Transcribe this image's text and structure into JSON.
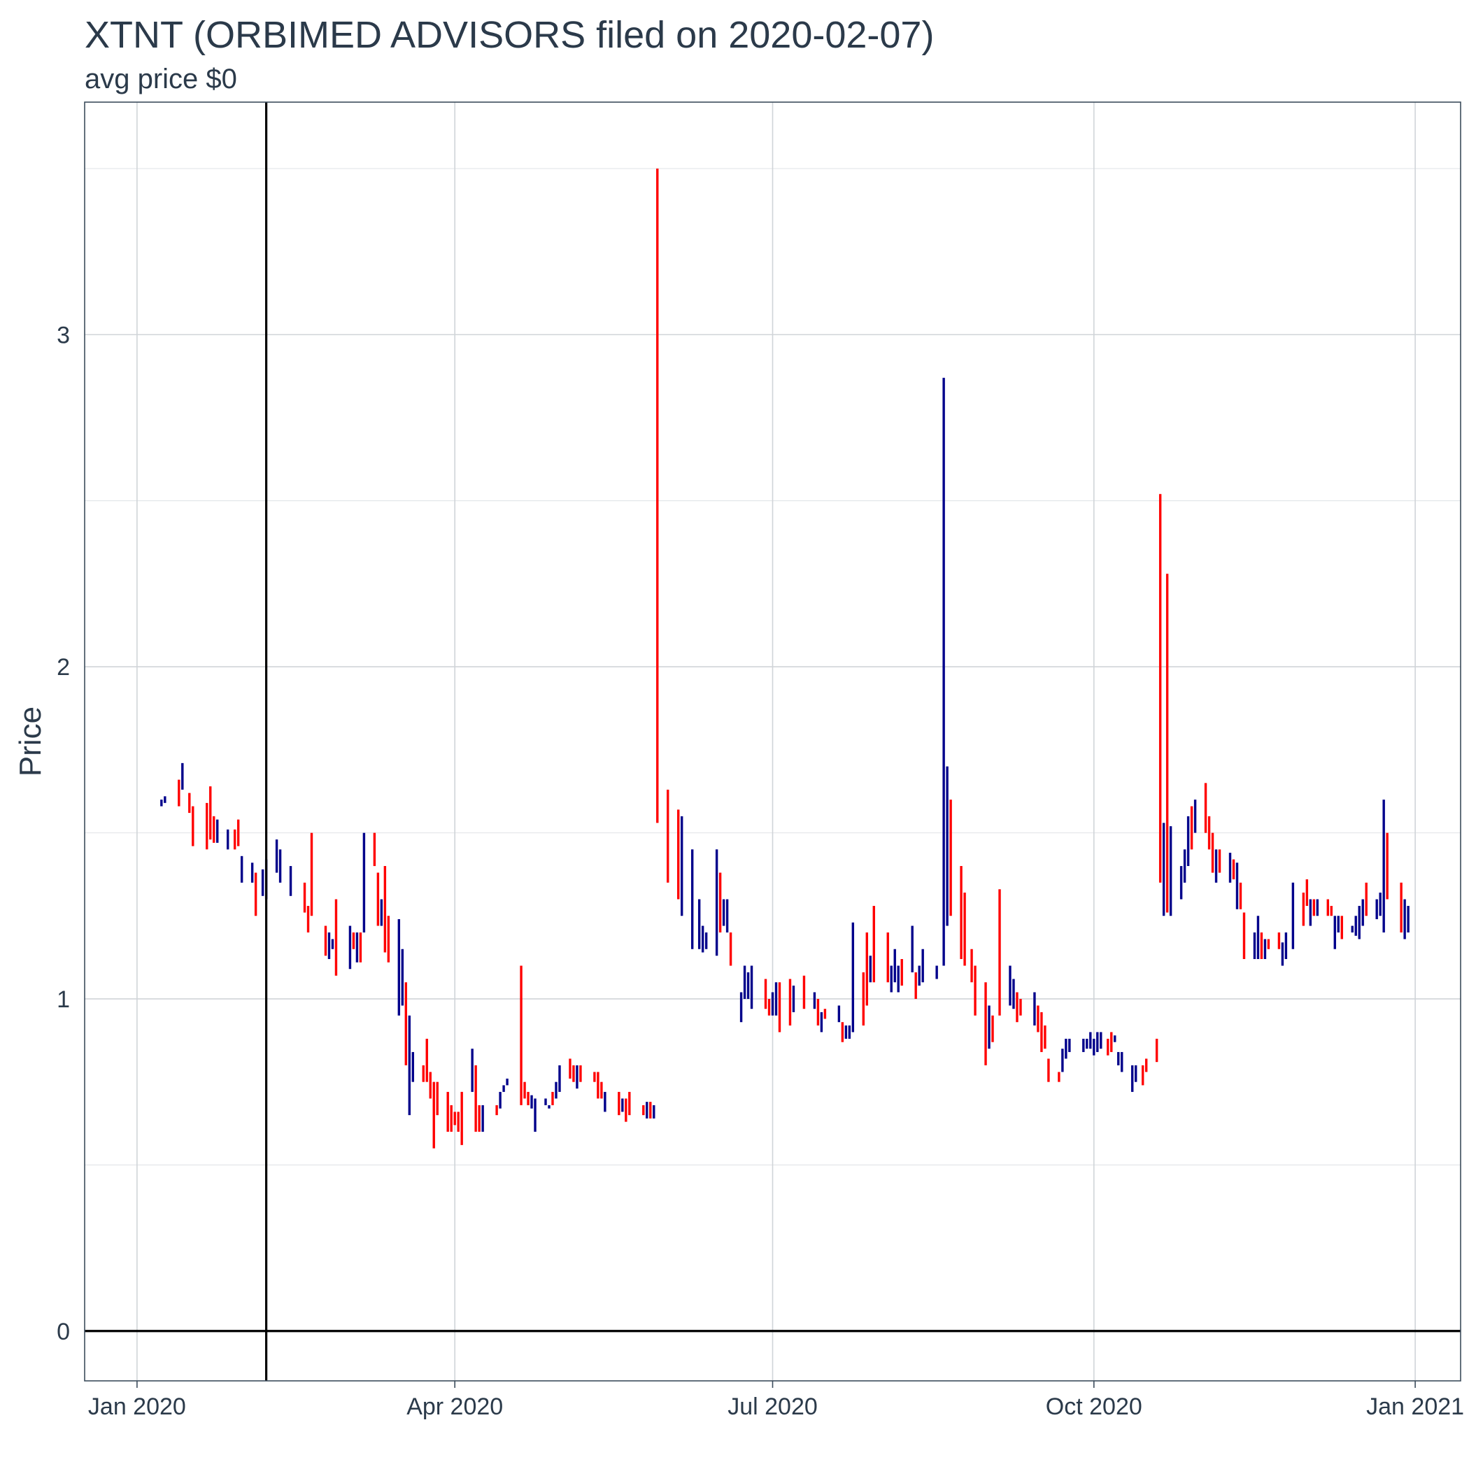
{
  "chart_data": {
    "type": "ohlc-bar",
    "title": "XTNT (ORBIMED ADVISORS filed on 2020-02-07)",
    "subtitle": "avg price $0",
    "xlabel": "",
    "ylabel": "Price",
    "xlim": [
      "2019-12-17",
      "2021-01-14"
    ],
    "ylim": [
      -0.15,
      3.7
    ],
    "x_ticks": [
      {
        "date": "2020-01-01",
        "label": "Jan 2020"
      },
      {
        "date": "2020-04-01",
        "label": "Apr 2020"
      },
      {
        "date": "2020-07-01",
        "label": "Jul 2020"
      },
      {
        "date": "2020-10-01",
        "label": "Oct 2020"
      },
      {
        "date": "2021-01-01",
        "label": "Jan 2021"
      }
    ],
    "y_ticks": [
      0,
      1,
      2,
      3
    ],
    "reference_lines": {
      "vertical_date": "2020-02-07",
      "horizontal_value": 0
    },
    "up_color": "#00008b",
    "down_color": "#ff0000",
    "bars": [
      [
        "2020-01-08",
        1.58,
        1.6,
        "up"
      ],
      [
        "2020-01-09",
        1.59,
        1.61,
        "up"
      ],
      [
        "2020-01-13",
        1.58,
        1.66,
        "down"
      ],
      [
        "2020-01-14",
        1.63,
        1.71,
        "up"
      ],
      [
        "2020-01-16",
        1.56,
        1.62,
        "down"
      ],
      [
        "2020-01-17",
        1.46,
        1.58,
        "down"
      ],
      [
        "2020-01-21",
        1.45,
        1.59,
        "down"
      ],
      [
        "2020-01-22",
        1.48,
        1.64,
        "down"
      ],
      [
        "2020-01-23",
        1.47,
        1.55,
        "down"
      ],
      [
        "2020-01-24",
        1.47,
        1.54,
        "up"
      ],
      [
        "2020-01-27",
        1.45,
        1.51,
        "up"
      ],
      [
        "2020-01-29",
        1.45,
        1.51,
        "down"
      ],
      [
        "2020-01-30",
        1.46,
        1.54,
        "down"
      ],
      [
        "2020-01-31",
        1.35,
        1.43,
        "up"
      ],
      [
        "2020-02-03",
        1.35,
        1.41,
        "up"
      ],
      [
        "2020-02-04",
        1.25,
        1.38,
        "down"
      ],
      [
        "2020-02-06",
        1.31,
        1.39,
        "up"
      ],
      [
        "2020-02-07",
        1.3,
        1.42,
        "up"
      ],
      [
        "2020-02-10",
        1.38,
        1.48,
        "up"
      ],
      [
        "2020-02-11",
        1.35,
        1.45,
        "up"
      ],
      [
        "2020-02-14",
        1.31,
        1.4,
        "up"
      ],
      [
        "2020-02-18",
        1.26,
        1.35,
        "down"
      ],
      [
        "2020-02-19",
        1.2,
        1.28,
        "down"
      ],
      [
        "2020-02-20",
        1.25,
        1.5,
        "down"
      ],
      [
        "2020-02-24",
        1.13,
        1.22,
        "down"
      ],
      [
        "2020-02-25",
        1.12,
        1.2,
        "up"
      ],
      [
        "2020-02-26",
        1.15,
        1.18,
        "up"
      ],
      [
        "2020-02-27",
        1.07,
        1.3,
        "down"
      ],
      [
        "2020-03-02",
        1.09,
        1.22,
        "up"
      ],
      [
        "2020-03-03",
        1.15,
        1.2,
        "down"
      ],
      [
        "2020-03-04",
        1.11,
        1.2,
        "up"
      ],
      [
        "2020-03-05",
        1.11,
        1.2,
        "down"
      ],
      [
        "2020-03-06",
        1.2,
        1.5,
        "up"
      ],
      [
        "2020-03-09",
        1.4,
        1.5,
        "down"
      ],
      [
        "2020-03-10",
        1.22,
        1.38,
        "down"
      ],
      [
        "2020-03-11",
        1.22,
        1.3,
        "up"
      ],
      [
        "2020-03-12",
        1.14,
        1.4,
        "down"
      ],
      [
        "2020-03-13",
        1.11,
        1.25,
        "down"
      ],
      [
        "2020-03-16",
        0.95,
        1.24,
        "up"
      ],
      [
        "2020-03-17",
        0.98,
        1.15,
        "up"
      ],
      [
        "2020-03-18",
        0.8,
        1.05,
        "down"
      ],
      [
        "2020-03-19",
        0.65,
        0.95,
        "up"
      ],
      [
        "2020-03-20",
        0.75,
        0.84,
        "up"
      ],
      [
        "2020-03-23",
        0.75,
        0.8,
        "down"
      ],
      [
        "2020-03-24",
        0.75,
        0.88,
        "down"
      ],
      [
        "2020-03-25",
        0.7,
        0.78,
        "down"
      ],
      [
        "2020-03-26",
        0.55,
        0.75,
        "down"
      ],
      [
        "2020-03-27",
        0.65,
        0.75,
        "down"
      ],
      [
        "2020-03-30",
        0.6,
        0.72,
        "down"
      ],
      [
        "2020-03-31",
        0.6,
        0.68,
        "down"
      ],
      [
        "2020-04-01",
        0.62,
        0.66,
        "down"
      ],
      [
        "2020-04-02",
        0.6,
        0.66,
        "down"
      ],
      [
        "2020-04-03",
        0.56,
        0.72,
        "down"
      ],
      [
        "2020-04-06",
        0.72,
        0.85,
        "up"
      ],
      [
        "2020-04-07",
        0.6,
        0.8,
        "down"
      ],
      [
        "2020-04-08",
        0.6,
        0.68,
        "down"
      ],
      [
        "2020-04-09",
        0.6,
        0.68,
        "up"
      ],
      [
        "2020-04-13",
        0.65,
        0.68,
        "down"
      ],
      [
        "2020-04-14",
        0.67,
        0.72,
        "up"
      ],
      [
        "2020-04-15",
        0.72,
        0.74,
        "up"
      ],
      [
        "2020-04-16",
        0.74,
        0.76,
        "up"
      ],
      [
        "2020-04-20",
        0.68,
        1.1,
        "down"
      ],
      [
        "2020-04-21",
        0.7,
        0.75,
        "down"
      ],
      [
        "2020-04-22",
        0.68,
        0.72,
        "down"
      ],
      [
        "2020-04-23",
        0.67,
        0.71,
        "up"
      ],
      [
        "2020-04-24",
        0.6,
        0.7,
        "up"
      ],
      [
        "2020-04-27",
        0.68,
        0.7,
        "up"
      ],
      [
        "2020-04-28",
        0.67,
        0.68,
        "up"
      ],
      [
        "2020-04-29",
        0.68,
        0.72,
        "down"
      ],
      [
        "2020-04-30",
        0.7,
        0.75,
        "up"
      ],
      [
        "2020-05-01",
        0.72,
        0.8,
        "up"
      ],
      [
        "2020-05-04",
        0.76,
        0.82,
        "down"
      ],
      [
        "2020-05-05",
        0.75,
        0.8,
        "down"
      ],
      [
        "2020-05-06",
        0.73,
        0.8,
        "up"
      ],
      [
        "2020-05-07",
        0.75,
        0.8,
        "down"
      ],
      [
        "2020-05-11",
        0.75,
        0.78,
        "down"
      ],
      [
        "2020-05-12",
        0.7,
        0.78,
        "down"
      ],
      [
        "2020-05-13",
        0.7,
        0.75,
        "down"
      ],
      [
        "2020-05-14",
        0.66,
        0.72,
        "up"
      ],
      [
        "2020-05-18",
        0.65,
        0.72,
        "down"
      ],
      [
        "2020-05-19",
        0.66,
        0.7,
        "up"
      ],
      [
        "2020-05-20",
        0.63,
        0.7,
        "down"
      ],
      [
        "2020-05-21",
        0.65,
        0.72,
        "down"
      ],
      [
        "2020-05-25",
        0.65,
        0.68,
        "down"
      ],
      [
        "2020-05-26",
        0.64,
        0.69,
        "up"
      ],
      [
        "2020-05-27",
        0.64,
        0.69,
        "down"
      ],
      [
        "2020-05-28",
        0.64,
        0.68,
        "up"
      ],
      [
        "2020-05-29",
        1.53,
        3.5,
        "down"
      ],
      [
        "2020-06-01",
        1.35,
        1.63,
        "down"
      ],
      [
        "2020-06-04",
        1.3,
        1.57,
        "down"
      ],
      [
        "2020-06-05",
        1.25,
        1.55,
        "up"
      ],
      [
        "2020-06-08",
        1.15,
        1.45,
        "up"
      ],
      [
        "2020-06-10",
        1.15,
        1.3,
        "up"
      ],
      [
        "2020-06-11",
        1.14,
        1.22,
        "up"
      ],
      [
        "2020-06-12",
        1.15,
        1.2,
        "up"
      ],
      [
        "2020-06-15",
        1.13,
        1.45,
        "up"
      ],
      [
        "2020-06-16",
        1.2,
        1.38,
        "down"
      ],
      [
        "2020-06-17",
        1.22,
        1.3,
        "up"
      ],
      [
        "2020-06-18",
        1.2,
        1.3,
        "up"
      ],
      [
        "2020-06-19",
        1.1,
        1.2,
        "down"
      ],
      [
        "2020-06-22",
        0.93,
        1.02,
        "up"
      ],
      [
        "2020-06-23",
        1.0,
        1.1,
        "up"
      ],
      [
        "2020-06-24",
        1.0,
        1.08,
        "up"
      ],
      [
        "2020-06-25",
        0.97,
        1.1,
        "up"
      ],
      [
        "2020-06-29",
        0.97,
        1.06,
        "down"
      ],
      [
        "2020-06-30",
        0.95,
        1.0,
        "down"
      ],
      [
        "2020-07-01",
        0.95,
        1.02,
        "up"
      ],
      [
        "2020-07-02",
        0.95,
        1.05,
        "up"
      ],
      [
        "2020-07-03",
        0.9,
        1.05,
        "down"
      ],
      [
        "2020-07-06",
        0.92,
        1.06,
        "down"
      ],
      [
        "2020-07-07",
        0.96,
        1.04,
        "up"
      ],
      [
        "2020-07-10",
        0.97,
        1.07,
        "down"
      ],
      [
        "2020-07-13",
        0.97,
        1.02,
        "up"
      ],
      [
        "2020-07-14",
        0.92,
        1.0,
        "down"
      ],
      [
        "2020-07-15",
        0.9,
        0.96,
        "up"
      ],
      [
        "2020-07-16",
        0.94,
        0.97,
        "down"
      ],
      [
        "2020-07-20",
        0.93,
        0.98,
        "up"
      ],
      [
        "2020-07-21",
        0.87,
        0.93,
        "down"
      ],
      [
        "2020-07-22",
        0.88,
        0.92,
        "up"
      ],
      [
        "2020-07-23",
        0.88,
        0.92,
        "up"
      ],
      [
        "2020-07-24",
        0.9,
        1.23,
        "up"
      ],
      [
        "2020-07-27",
        0.92,
        1.08,
        "down"
      ],
      [
        "2020-07-28",
        0.98,
        1.2,
        "down"
      ],
      [
        "2020-07-29",
        1.05,
        1.13,
        "up"
      ],
      [
        "2020-07-30",
        1.05,
        1.28,
        "down"
      ],
      [
        "2020-08-03",
        1.05,
        1.2,
        "down"
      ],
      [
        "2020-08-04",
        1.02,
        1.1,
        "up"
      ],
      [
        "2020-08-05",
        1.05,
        1.15,
        "up"
      ],
      [
        "2020-08-06",
        1.02,
        1.1,
        "up"
      ],
      [
        "2020-08-07",
        1.04,
        1.12,
        "down"
      ],
      [
        "2020-08-10",
        1.08,
        1.22,
        "up"
      ],
      [
        "2020-08-11",
        1.0,
        1.08,
        "down"
      ],
      [
        "2020-08-12",
        1.04,
        1.1,
        "up"
      ],
      [
        "2020-08-13",
        1.05,
        1.15,
        "up"
      ],
      [
        "2020-08-17",
        1.06,
        1.1,
        "up"
      ],
      [
        "2020-08-19",
        1.1,
        2.87,
        "up"
      ],
      [
        "2020-08-20",
        1.22,
        1.7,
        "up"
      ],
      [
        "2020-08-21",
        1.25,
        1.6,
        "down"
      ],
      [
        "2020-08-24",
        1.12,
        1.4,
        "down"
      ],
      [
        "2020-08-25",
        1.1,
        1.32,
        "down"
      ],
      [
        "2020-08-27",
        1.05,
        1.15,
        "down"
      ],
      [
        "2020-08-28",
        0.95,
        1.1,
        "down"
      ],
      [
        "2020-08-31",
        0.8,
        1.05,
        "down"
      ],
      [
        "2020-09-01",
        0.85,
        0.98,
        "up"
      ],
      [
        "2020-09-02",
        0.87,
        0.95,
        "down"
      ],
      [
        "2020-09-04",
        0.95,
        1.33,
        "down"
      ],
      [
        "2020-09-07",
        0.98,
        1.1,
        "up"
      ],
      [
        "2020-09-08",
        0.97,
        1.06,
        "up"
      ],
      [
        "2020-09-09",
        0.93,
        1.02,
        "down"
      ],
      [
        "2020-09-10",
        0.95,
        1.0,
        "down"
      ],
      [
        "2020-09-14",
        0.92,
        1.02,
        "up"
      ],
      [
        "2020-09-15",
        0.9,
        0.98,
        "down"
      ],
      [
        "2020-09-16",
        0.84,
        0.96,
        "down"
      ],
      [
        "2020-09-17",
        0.85,
        0.92,
        "down"
      ],
      [
        "2020-09-18",
        0.75,
        0.82,
        "down"
      ],
      [
        "2020-09-21",
        0.75,
        0.78,
        "down"
      ],
      [
        "2020-09-22",
        0.78,
        0.85,
        "up"
      ],
      [
        "2020-09-23",
        0.82,
        0.88,
        "up"
      ],
      [
        "2020-09-24",
        0.84,
        0.88,
        "up"
      ],
      [
        "2020-09-28",
        0.84,
        0.88,
        "up"
      ],
      [
        "2020-09-29",
        0.85,
        0.88,
        "up"
      ],
      [
        "2020-09-30",
        0.85,
        0.9,
        "up"
      ],
      [
        "2020-10-01",
        0.83,
        0.88,
        "up"
      ],
      [
        "2020-10-02",
        0.84,
        0.9,
        "up"
      ],
      [
        "2020-10-03",
        0.85,
        0.9,
        "up"
      ],
      [
        "2020-10-05",
        0.83,
        0.88,
        "down"
      ],
      [
        "2020-10-06",
        0.84,
        0.9,
        "down"
      ],
      [
        "2020-10-07",
        0.87,
        0.89,
        "up"
      ],
      [
        "2020-10-08",
        0.8,
        0.84,
        "up"
      ],
      [
        "2020-10-09",
        0.78,
        0.84,
        "up"
      ],
      [
        "2020-10-12",
        0.72,
        0.8,
        "up"
      ],
      [
        "2020-10-13",
        0.75,
        0.8,
        "up"
      ],
      [
        "2020-10-15",
        0.74,
        0.8,
        "down"
      ],
      [
        "2020-10-16",
        0.78,
        0.82,
        "down"
      ],
      [
        "2020-10-19",
        0.81,
        0.88,
        "down"
      ],
      [
        "2020-10-20",
        1.35,
        2.52,
        "down"
      ],
      [
        "2020-10-21",
        1.25,
        1.53,
        "up"
      ],
      [
        "2020-10-22",
        1.26,
        2.28,
        "down"
      ],
      [
        "2020-10-23",
        1.25,
        1.52,
        "up"
      ],
      [
        "2020-10-26",
        1.3,
        1.4,
        "up"
      ],
      [
        "2020-10-27",
        1.35,
        1.45,
        "up"
      ],
      [
        "2020-10-28",
        1.4,
        1.55,
        "up"
      ],
      [
        "2020-10-29",
        1.45,
        1.58,
        "down"
      ],
      [
        "2020-10-30",
        1.5,
        1.6,
        "up"
      ],
      [
        "2020-11-02",
        1.5,
        1.65,
        "down"
      ],
      [
        "2020-11-03",
        1.45,
        1.55,
        "down"
      ],
      [
        "2020-11-04",
        1.38,
        1.5,
        "down"
      ],
      [
        "2020-11-05",
        1.35,
        1.45,
        "up"
      ],
      [
        "2020-11-06",
        1.38,
        1.45,
        "down"
      ],
      [
        "2020-11-09",
        1.35,
        1.44,
        "up"
      ],
      [
        "2020-11-10",
        1.36,
        1.42,
        "down"
      ],
      [
        "2020-11-11",
        1.27,
        1.41,
        "up"
      ],
      [
        "2020-11-12",
        1.27,
        1.35,
        "down"
      ],
      [
        "2020-11-13",
        1.12,
        1.26,
        "down"
      ],
      [
        "2020-11-16",
        1.12,
        1.2,
        "up"
      ],
      [
        "2020-11-17",
        1.12,
        1.25,
        "up"
      ],
      [
        "2020-11-18",
        1.12,
        1.2,
        "down"
      ],
      [
        "2020-11-19",
        1.12,
        1.18,
        "up"
      ],
      [
        "2020-11-20",
        1.15,
        1.18,
        "down"
      ],
      [
        "2020-11-23",
        1.15,
        1.2,
        "down"
      ],
      [
        "2020-11-24",
        1.1,
        1.17,
        "up"
      ],
      [
        "2020-11-25",
        1.12,
        1.2,
        "up"
      ],
      [
        "2020-11-27",
        1.15,
        1.35,
        "up"
      ],
      [
        "2020-11-30",
        1.22,
        1.32,
        "down"
      ],
      [
        "2020-12-01",
        1.28,
        1.36,
        "down"
      ],
      [
        "2020-12-02",
        1.22,
        1.3,
        "up"
      ],
      [
        "2020-12-03",
        1.25,
        1.3,
        "down"
      ],
      [
        "2020-12-04",
        1.25,
        1.3,
        "up"
      ],
      [
        "2020-12-07",
        1.25,
        1.3,
        "down"
      ],
      [
        "2020-12-08",
        1.25,
        1.28,
        "down"
      ],
      [
        "2020-12-09",
        1.15,
        1.25,
        "up"
      ],
      [
        "2020-12-10",
        1.2,
        1.25,
        "up"
      ],
      [
        "2020-12-11",
        1.18,
        1.25,
        "down"
      ],
      [
        "2020-12-14",
        1.2,
        1.22,
        "up"
      ],
      [
        "2020-12-15",
        1.19,
        1.25,
        "up"
      ],
      [
        "2020-12-16",
        1.18,
        1.28,
        "up"
      ],
      [
        "2020-12-17",
        1.22,
        1.3,
        "up"
      ],
      [
        "2020-12-18",
        1.25,
        1.35,
        "down"
      ],
      [
        "2020-12-21",
        1.24,
        1.3,
        "up"
      ],
      [
        "2020-12-22",
        1.25,
        1.32,
        "up"
      ],
      [
        "2020-12-23",
        1.2,
        1.6,
        "up"
      ],
      [
        "2020-12-24",
        1.3,
        1.5,
        "down"
      ],
      [
        "2020-12-28",
        1.2,
        1.35,
        "down"
      ],
      [
        "2020-12-29",
        1.18,
        1.3,
        "up"
      ],
      [
        "2020-12-30",
        1.2,
        1.28,
        "up"
      ]
    ]
  }
}
